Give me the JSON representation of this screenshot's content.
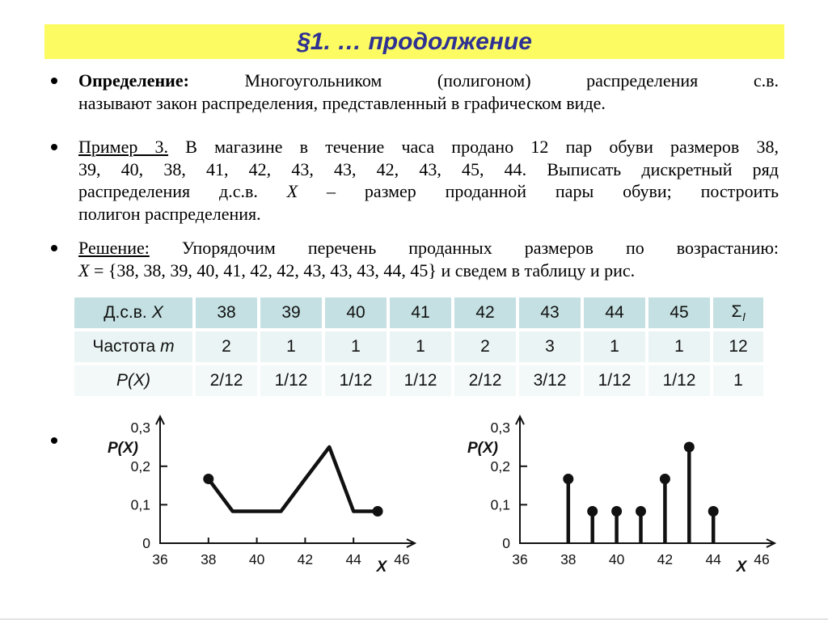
{
  "colors": {
    "title_bg": "#fcfc62",
    "title_text": "#2f3193",
    "table_header_bg": "#c4e0e2",
    "table_row_freq_bg": "#eaf4f4",
    "table_row_prob_bg": "#f3f9f8",
    "ink": "#111111"
  },
  "slide": {
    "title": "§1. … продолжение",
    "bullets": [
      {
        "lines": [
          {
            "justify": true,
            "segments": [
              {
                "t": "Определение:",
                "s": "bold"
              },
              {
                "t": " Многоугольником (полигоном) распределения с.в.",
                "s": ""
              }
            ]
          },
          {
            "justify": false,
            "segments": [
              {
                "t": "называют закон распределения, представленный в графическом виде.",
                "s": ""
              }
            ]
          }
        ]
      },
      {
        "lines": [
          {
            "justify": true,
            "segments": [
              {
                "t": "Пример 3.",
                "s": "underline"
              },
              {
                "t": " В магазине в течение часа продано 12 пар обуви размеров 38,",
                "s": ""
              }
            ]
          },
          {
            "justify": true,
            "segments": [
              {
                "t": "39, 40, 38, 41, 42, 43, 43, 42, 43, 45, 44. Выписать дискретный ряд",
                "s": ""
              }
            ]
          },
          {
            "justify": true,
            "segments": [
              {
                "t": "распределения д.с.в. ",
                "s": ""
              },
              {
                "t": "X",
                "s": "italic"
              },
              {
                "t": " – размер проданной пары обуви; построить",
                "s": ""
              }
            ]
          },
          {
            "justify": false,
            "segments": [
              {
                "t": "полигон распределения.",
                "s": ""
              }
            ]
          }
        ]
      },
      {
        "lines": [
          {
            "justify": true,
            "segments": [
              {
                "t": "Решение:",
                "s": "underline"
              },
              {
                "t": " Упорядочим перечень проданных размеров по возрастанию:",
                "s": ""
              }
            ]
          },
          {
            "justify": false,
            "segments": [
              {
                "t": "X",
                "s": "italic"
              },
              {
                "t": " = {38, 38, 39, 40, 41, 42, 42, 43, 43, 43, 44, 45} и сведем в таблицу и рис.",
                "s": ""
              }
            ]
          }
        ]
      }
    ]
  },
  "table": {
    "header": {
      "label": "Д.с.в.",
      "label_var": "X",
      "values": [
        "38",
        "39",
        "40",
        "41",
        "42",
        "43",
        "44",
        "45"
      ],
      "sum_sigma": "Σ",
      "sum_sub": "l"
    },
    "rows": [
      {
        "label": "Частота",
        "label_var": "m",
        "values": [
          "2",
          "1",
          "1",
          "1",
          "2",
          "3",
          "1",
          "1"
        ],
        "sum": "12"
      },
      {
        "label": "P(X)",
        "label_var": "",
        "values": [
          "2/12",
          "1/12",
          "1/12",
          "1/12",
          "2/12",
          "3/12",
          "1/12",
          "1/12"
        ],
        "sum": "1"
      }
    ]
  },
  "chart_data": [
    {
      "type": "line",
      "x": [
        38,
        39,
        40,
        41,
        42,
        43,
        44,
        45
      ],
      "y": [
        0.167,
        0.083,
        0.083,
        0.083,
        0.167,
        0.25,
        0.083,
        0.083
      ],
      "marker_points_x": [
        38,
        45
      ],
      "xlabel": "X",
      "ylabel": "P(X)",
      "x_ticks": [
        38,
        40,
        42,
        44
      ],
      "x_tick_labels": [
        "36",
        "38",
        "40",
        "42",
        "44",
        "46"
      ],
      "x_tick_label_positions": [
        36,
        38,
        40,
        42,
        44,
        46
      ],
      "y_ticks": [
        0.1,
        0.2
      ],
      "y_tick_labels": [
        "0",
        "0,1",
        "0,2",
        "0,3"
      ],
      "y_tick_label_positions": [
        0,
        0.1,
        0.2,
        0.3
      ],
      "xlim": [
        36,
        46.3
      ],
      "ylim": [
        0,
        0.3
      ],
      "grid": false,
      "legend": "none"
    },
    {
      "type": "stem",
      "x": [
        38,
        39,
        40,
        41,
        42,
        43,
        44
      ],
      "y": [
        0.167,
        0.083,
        0.083,
        0.083,
        0.167,
        0.25,
        0.083
      ],
      "marker_points_x": [
        38,
        39,
        40,
        41,
        42,
        43,
        44
      ],
      "xlabel": "X",
      "ylabel": "P(X)",
      "x_ticks": [
        38,
        40,
        42,
        44
      ],
      "x_tick_labels": [
        "36",
        "38",
        "40",
        "42",
        "44",
        "46"
      ],
      "x_tick_label_positions": [
        36,
        38,
        40,
        42,
        44,
        46
      ],
      "y_ticks": [
        0.1,
        0.2
      ],
      "y_tick_labels": [
        "0",
        "0,1",
        "0,2",
        "0,3"
      ],
      "y_tick_label_positions": [
        0,
        0.1,
        0.2,
        0.3
      ],
      "xlim": [
        36,
        46.3
      ],
      "ylim": [
        0,
        0.3
      ],
      "grid": false,
      "legend": "none"
    }
  ]
}
